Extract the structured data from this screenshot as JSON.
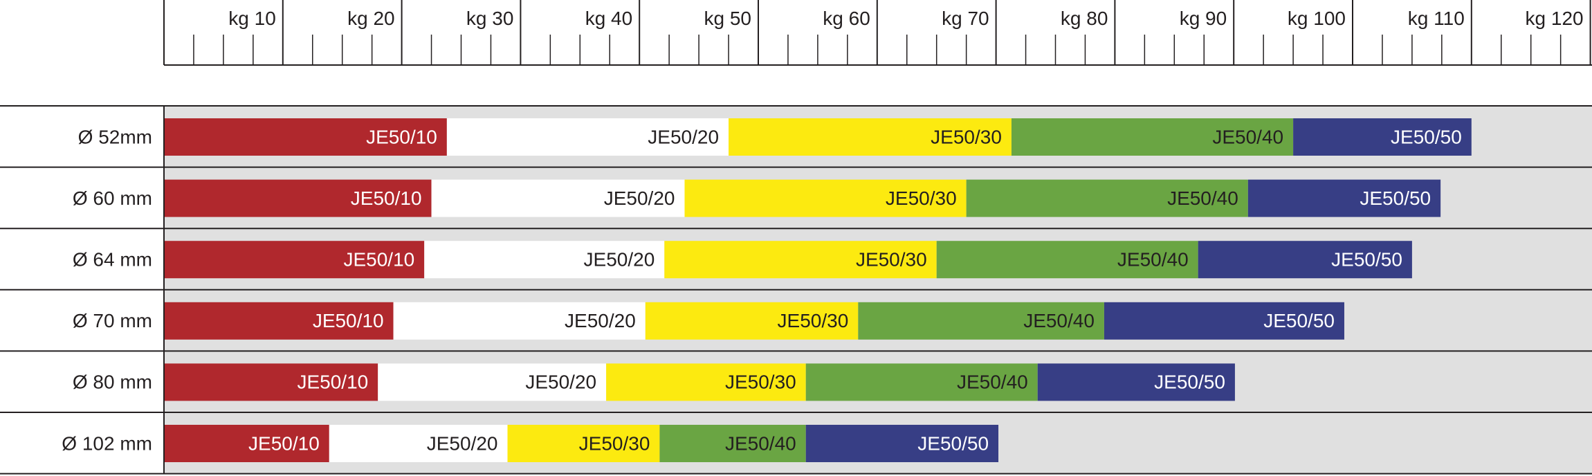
{
  "chart_data": {
    "type": "bar",
    "stacked": true,
    "orientation": "horizontal",
    "xaxis": {
      "unit": "kg",
      "min": 0,
      "max": 120,
      "major_step": 10,
      "minor_step": 2.5,
      "tick_labels": [
        "kg 10",
        "kg 20",
        "kg 30",
        "kg 40",
        "kg 50",
        "kg 60",
        "kg 70",
        "kg 80",
        "kg 90",
        "kg 100",
        "kg 110",
        "kg 120"
      ]
    },
    "categories": [
      "Ø 52mm",
      "Ø 60 mm",
      "Ø 64 mm",
      "Ø 70 mm",
      "Ø 80 mm",
      "Ø 102 mm"
    ],
    "series": [
      {
        "name": "JE50/10",
        "color": "#b0282d",
        "text_color": "#ffffff",
        "values": [
          23.8,
          22.5,
          21.9,
          19.3,
          18.0,
          13.9
        ]
      },
      {
        "name": "JE50/20",
        "color": "#ffffff",
        "text_color": "#231f20",
        "values": [
          23.7,
          21.3,
          20.2,
          21.2,
          19.2,
          15.0
        ]
      },
      {
        "name": "JE50/30",
        "color": "#fcea10",
        "text_color": "#231f20",
        "values": [
          23.8,
          23.7,
          22.9,
          17.9,
          16.8,
          12.8
        ]
      },
      {
        "name": "JE50/40",
        "color": "#6aa543",
        "text_color": "#231f20",
        "values": [
          23.7,
          23.7,
          22.0,
          20.7,
          19.5,
          12.3
        ]
      },
      {
        "name": "JE50/50",
        "color": "#373e85",
        "text_color": "#ffffff",
        "values": [
          15.0,
          16.2,
          18.0,
          20.2,
          16.6,
          16.2
        ]
      }
    ],
    "grid": false,
    "legend": "none",
    "colors": {
      "plot_background": "#e0e0e0",
      "rule": "#231f20"
    }
  }
}
